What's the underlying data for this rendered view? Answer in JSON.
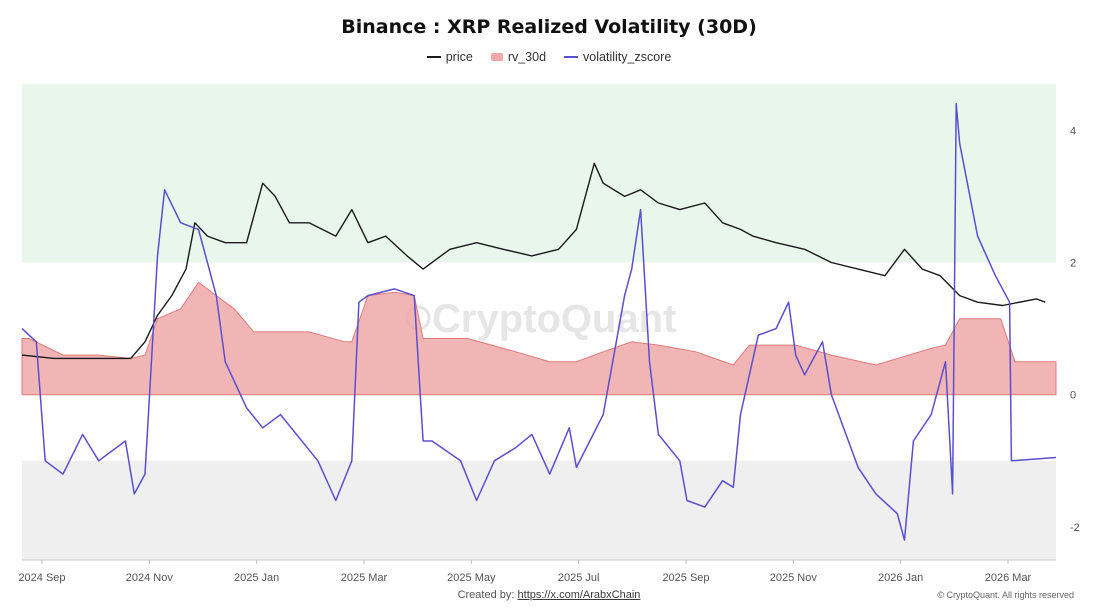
{
  "chart_data": {
    "type": "line",
    "title": "Binance : XRP Realized Volatility (30D)",
    "legend": [
      {
        "name": "price",
        "kind": "line",
        "color": "#1a1a1a"
      },
      {
        "name": "rv_30d",
        "kind": "area",
        "color": "#f0a8a8"
      },
      {
        "name": "volatility_zscore",
        "kind": "line",
        "color": "#5a4fcf"
      }
    ],
    "x_ticks": [
      "2024 Sep",
      "2024 Nov",
      "2025 Jan",
      "2025 Mar",
      "2025 May",
      "2025 Jul",
      "2025 Sep",
      "2025 Nov",
      "2026 Jan",
      "2026 Mar"
    ],
    "x_range": [
      "2024-08-28",
      "2026-03-31"
    ],
    "y_ticks": [
      "4",
      "2",
      "0",
      "-2"
    ],
    "ylim": [
      -2.5,
      4.7
    ],
    "zones": [
      {
        "from": 2,
        "to": 4.7,
        "color": "#e8f6ec"
      },
      {
        "from": -2.5,
        "to": -1,
        "color": "#efefef"
      }
    ],
    "series": [
      {
        "name": "rv_30d",
        "x": [
          "2024-08-28",
          "2024-09-01",
          "2024-09-20",
          "2024-10-10",
          "2024-10-28",
          "2024-11-05",
          "2024-11-12",
          "2024-11-25",
          "2024-12-05",
          "2024-12-15",
          "2024-12-25",
          "2025-01-05",
          "2025-01-15",
          "2025-02-05",
          "2025-02-25",
          "2025-03-01",
          "2025-03-10",
          "2025-03-25",
          "2025-04-05",
          "2025-04-10",
          "2025-05-05",
          "2025-06-01",
          "2025-06-20",
          "2025-07-05",
          "2025-07-20",
          "2025-08-05",
          "2025-08-20",
          "2025-09-10",
          "2025-10-01",
          "2025-10-10",
          "2025-11-05",
          "2025-11-25",
          "2025-12-20",
          "2026-01-20",
          "2026-01-28",
          "2026-02-05",
          "2026-02-20",
          "2026-02-28",
          "2026-03-08",
          "2026-03-31"
        ],
        "values": [
          0.85,
          0.85,
          0.6,
          0.6,
          0.55,
          0.6,
          1.15,
          1.3,
          1.7,
          1.5,
          1.3,
          0.95,
          0.95,
          0.95,
          0.8,
          0.8,
          1.5,
          1.55,
          1.5,
          0.85,
          0.85,
          0.65,
          0.5,
          0.5,
          0.65,
          0.8,
          0.75,
          0.65,
          0.45,
          0.75,
          0.75,
          0.6,
          0.45,
          0.7,
          0.75,
          1.15,
          1.15,
          1.15,
          0.5,
          0.5
        ]
      },
      {
        "name": "price",
        "x": [
          "2024-08-28",
          "2024-09-15",
          "2024-10-10",
          "2024-10-28",
          "2024-11-05",
          "2024-11-12",
          "2024-11-20",
          "2024-11-28",
          "2024-12-03",
          "2024-12-10",
          "2024-12-20",
          "2025-01-01",
          "2025-01-10",
          "2025-01-17",
          "2025-01-25",
          "2025-02-05",
          "2025-02-20",
          "2025-03-01",
          "2025-03-10",
          "2025-03-20",
          "2025-04-01",
          "2025-04-10",
          "2025-04-25",
          "2025-05-10",
          "2025-05-25",
          "2025-06-10",
          "2025-06-25",
          "2025-07-05",
          "2025-07-15",
          "2025-07-20",
          "2025-08-01",
          "2025-08-10",
          "2025-08-20",
          "2025-09-01",
          "2025-09-15",
          "2025-09-25",
          "2025-10-05",
          "2025-10-12",
          "2025-10-25",
          "2025-11-10",
          "2025-11-25",
          "2025-12-10",
          "2025-12-25",
          "2026-01-05",
          "2026-01-15",
          "2026-01-25",
          "2026-02-05",
          "2026-02-15",
          "2026-03-01",
          "2026-03-20",
          "2026-03-25"
        ],
        "values": [
          0.6,
          0.55,
          0.55,
          0.55,
          0.8,
          1.2,
          1.5,
          1.9,
          2.6,
          2.4,
          2.3,
          2.3,
          3.2,
          3.0,
          2.6,
          2.6,
          2.4,
          2.8,
          2.3,
          2.4,
          2.1,
          1.9,
          2.2,
          2.3,
          2.2,
          2.1,
          2.2,
          2.5,
          3.5,
          3.2,
          3.0,
          3.1,
          2.9,
          2.8,
          2.9,
          2.6,
          2.5,
          2.4,
          2.3,
          2.2,
          2.0,
          1.9,
          1.8,
          2.2,
          1.9,
          1.8,
          1.5,
          1.4,
          1.35,
          1.45,
          1.4
        ]
      },
      {
        "name": "volatility_zscore",
        "x": [
          "2024-08-28",
          "2024-09-05",
          "2024-09-10",
          "2024-09-20",
          "2024-10-01",
          "2024-10-10",
          "2024-10-25",
          "2024-10-30",
          "2024-11-05",
          "2024-11-12",
          "2024-11-16",
          "2024-11-25",
          "2024-12-05",
          "2024-12-15",
          "2024-12-20",
          "2025-01-01",
          "2025-01-10",
          "2025-01-20",
          "2025-02-10",
          "2025-02-20",
          "2025-03-01",
          "2025-03-05",
          "2025-03-10",
          "2025-03-25",
          "2025-04-05",
          "2025-04-10",
          "2025-04-15",
          "2025-05-01",
          "2025-05-10",
          "2025-05-20",
          "2025-06-01",
          "2025-06-10",
          "2025-06-20",
          "2025-07-01",
          "2025-07-05",
          "2025-07-20",
          "2025-08-01",
          "2025-08-05",
          "2025-08-10",
          "2025-08-15",
          "2025-08-20",
          "2025-09-01",
          "2025-09-05",
          "2025-09-15",
          "2025-09-25",
          "2025-10-01",
          "2025-10-05",
          "2025-10-15",
          "2025-10-25",
          "2025-11-01",
          "2025-11-05",
          "2025-11-10",
          "2025-11-20",
          "2025-11-25",
          "2025-12-10",
          "2025-12-20",
          "2026-01-01",
          "2026-01-05",
          "2026-01-10",
          "2026-01-20",
          "2026-01-28",
          "2026-02-01",
          "2026-02-03",
          "2026-02-05",
          "2026-02-15",
          "2026-02-25",
          "2026-03-05",
          "2026-03-06",
          "2026-03-31"
        ],
        "values": [
          1.0,
          0.8,
          -1.0,
          -1.2,
          -0.6,
          -1.0,
          -0.7,
          -1.5,
          -1.2,
          2.1,
          3.1,
          2.6,
          2.5,
          1.5,
          0.5,
          -0.2,
          -0.5,
          -0.3,
          -1.0,
          -1.6,
          -1.0,
          1.4,
          1.5,
          1.6,
          1.5,
          -0.7,
          -0.7,
          -1.0,
          -1.6,
          -1.0,
          -0.8,
          -0.6,
          -1.2,
          -0.5,
          -1.1,
          -0.3,
          1.5,
          1.9,
          2.8,
          0.5,
          -0.6,
          -1.0,
          -1.6,
          -1.7,
          -1.3,
          -1.4,
          -0.3,
          0.9,
          1.0,
          1.4,
          0.6,
          0.3,
          0.8,
          0.0,
          -1.1,
          -1.5,
          -1.8,
          -2.2,
          -0.7,
          -0.3,
          0.5,
          -1.5,
          4.4,
          3.8,
          2.4,
          1.8,
          1.4,
          -1.0,
          -0.95
        ]
      }
    ]
  },
  "footer": {
    "created_by_label": "Created by:",
    "created_by_link": "https://x.com/ArabxChain",
    "copyright": "© CryptoQuant. All rights reserved"
  }
}
